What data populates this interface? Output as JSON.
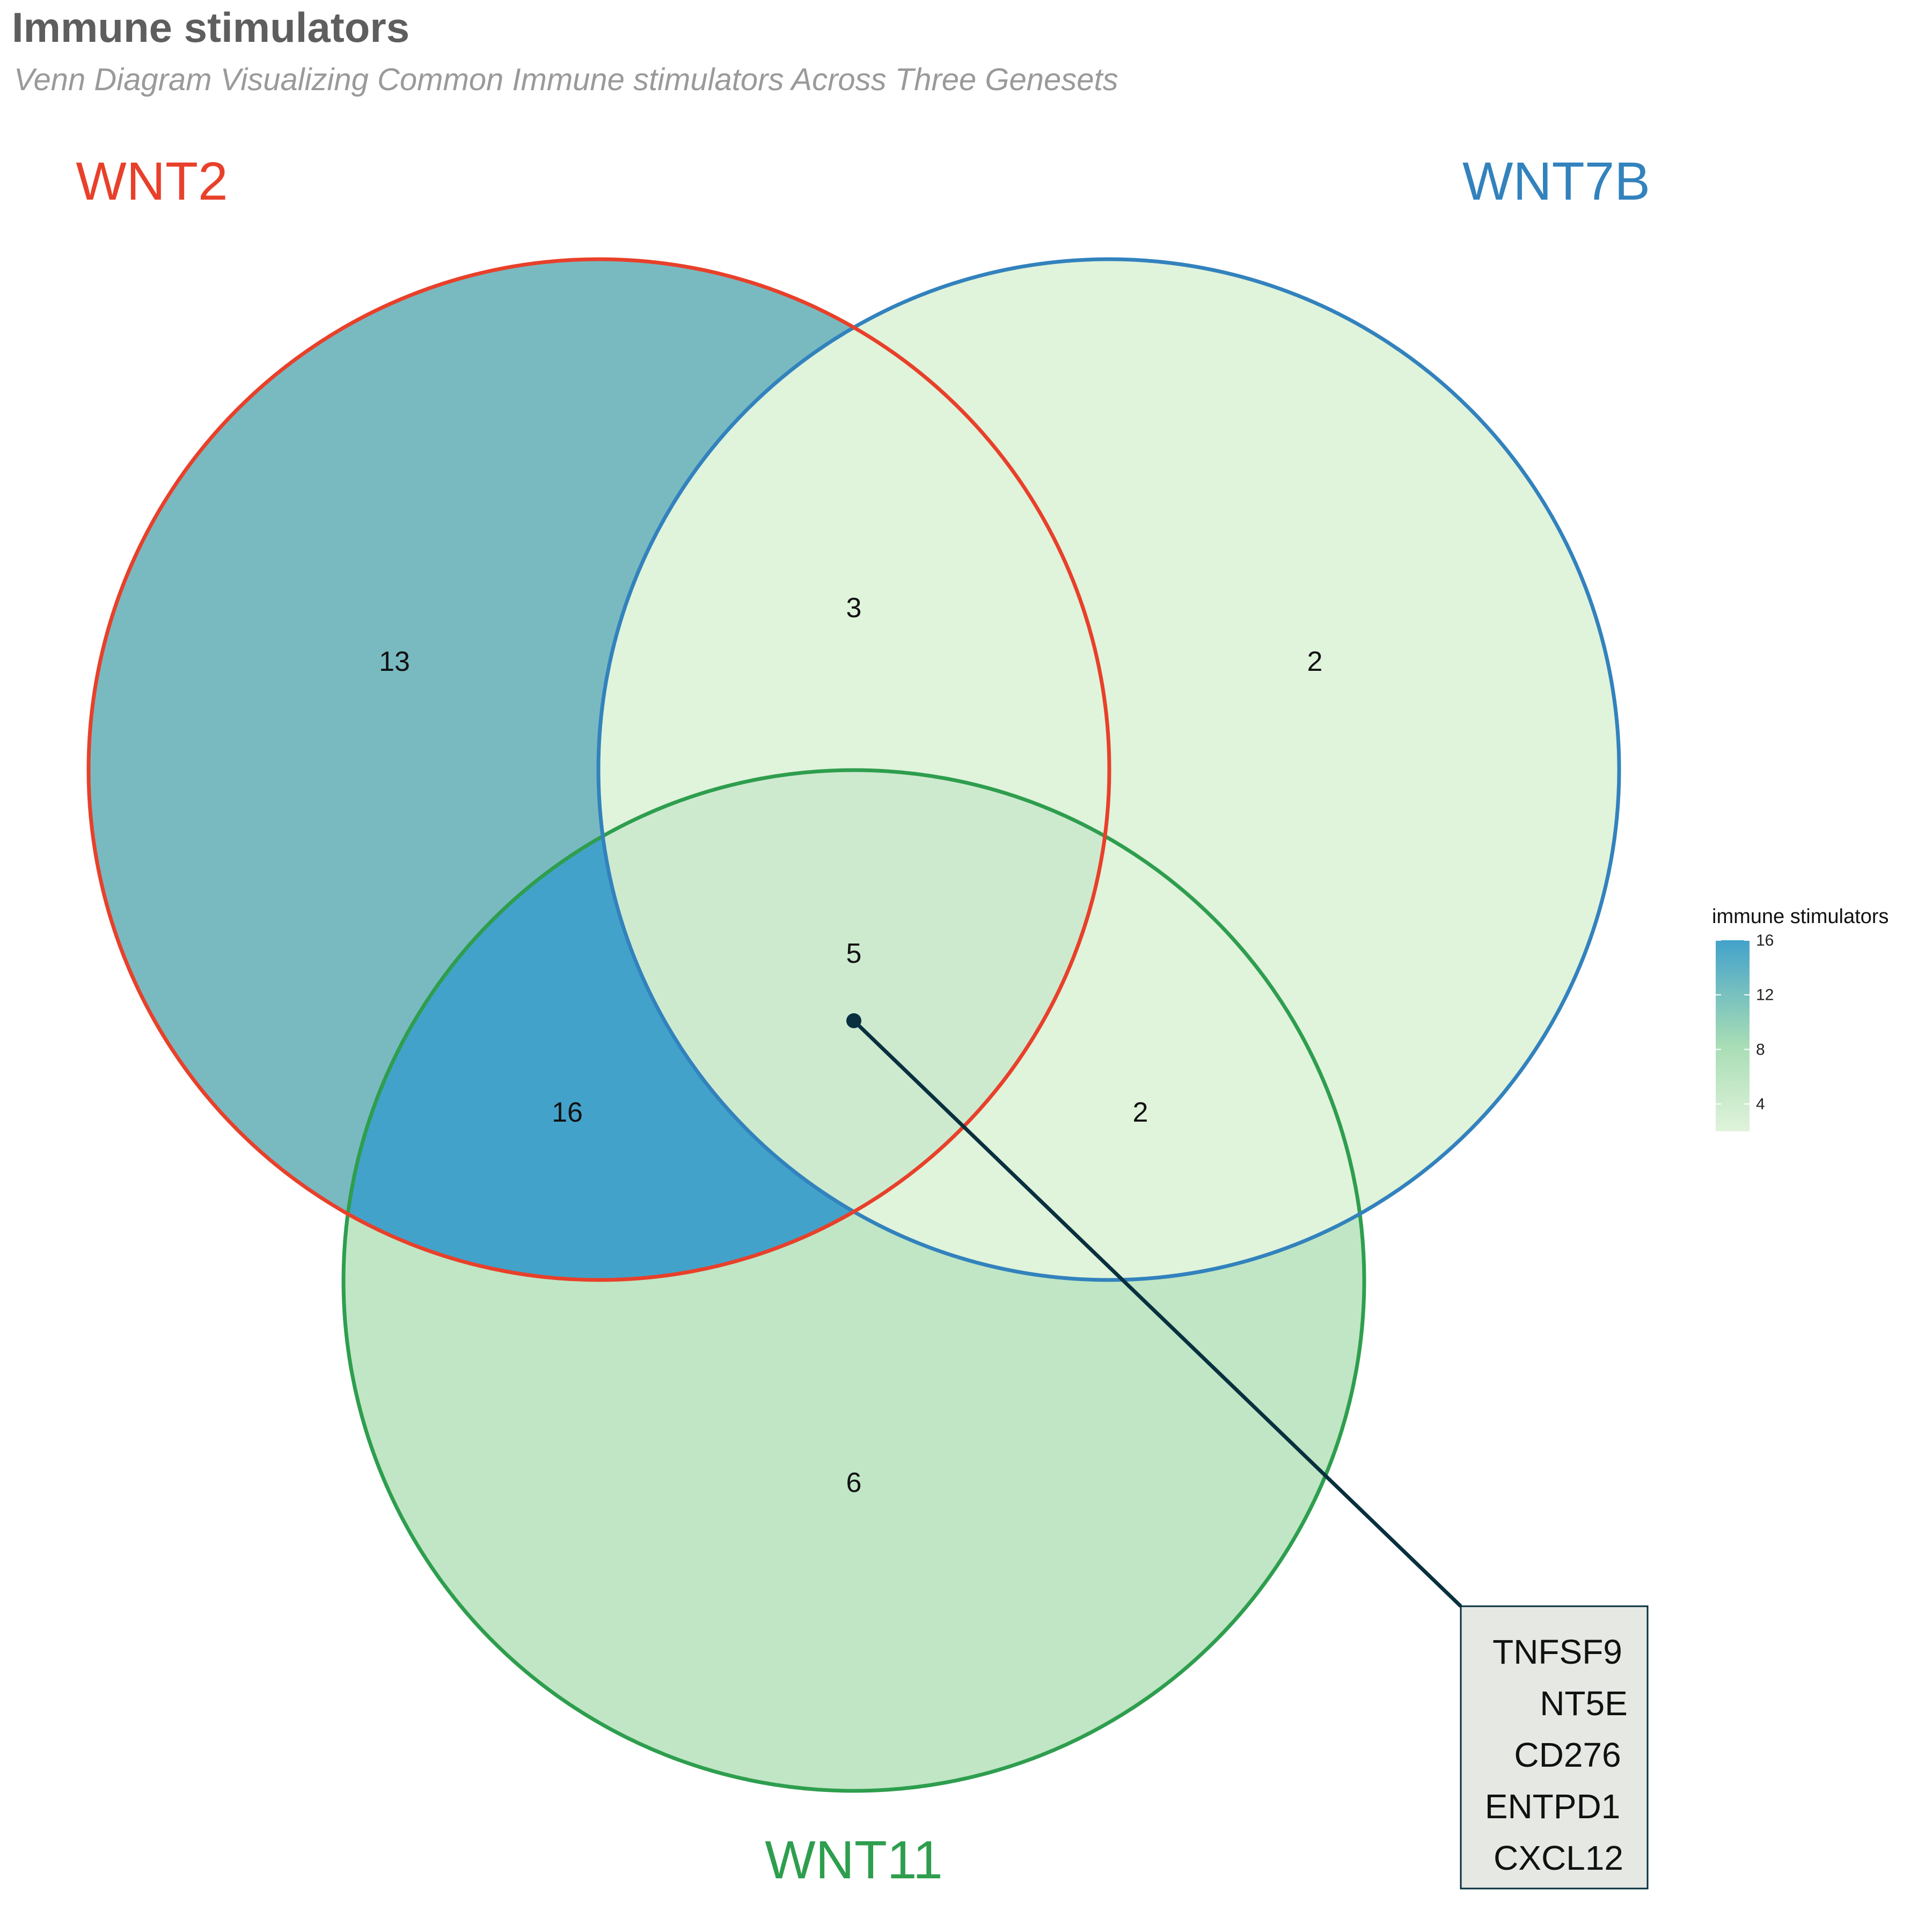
{
  "title": "Immune stimulators",
  "subtitle": "Venn Diagram Visualizing Common Immune stimulators Across Three Genesets",
  "sets": [
    {
      "id": "wnt2",
      "label": "WNT2",
      "color": "#e8402a"
    },
    {
      "id": "wnt7b",
      "label": "WNT7B",
      "color": "#3282bd"
    },
    {
      "id": "wnt11",
      "label": "WNT11",
      "color": "#2e9e4e"
    }
  ],
  "regions": {
    "wnt2_only": {
      "count": "13",
      "fill": "#79bac1"
    },
    "wnt7b_only": {
      "count": "2",
      "fill": "#e0f3db"
    },
    "wnt11_only": {
      "count": "6",
      "fill": "#c0e6c5"
    },
    "wnt2_wnt7b": {
      "count": "3",
      "fill": "#e0f3db"
    },
    "wnt2_wnt11": {
      "count": "16",
      "fill": "#43a2ca"
    },
    "wnt7b_wnt11": {
      "count": "2",
      "fill": "#e0f3db"
    },
    "all_three": {
      "count": "5",
      "fill": "#cdeacf"
    }
  },
  "callout": {
    "genes": [
      "TNFSF9",
      "NT5E",
      "CD276",
      "ENTPD1",
      "CXCL12"
    ],
    "line_color": "#08303e",
    "box_fill": "#e5e8e3"
  },
  "legend": {
    "title": "immune stimulators",
    "ticks": [
      "16",
      "12",
      "8",
      "4"
    ],
    "min_value": 2,
    "max_value": 16,
    "color_low": "#e0f3db",
    "color_mid": "#a8ddb5",
    "color_high": "#43a2ca"
  }
}
